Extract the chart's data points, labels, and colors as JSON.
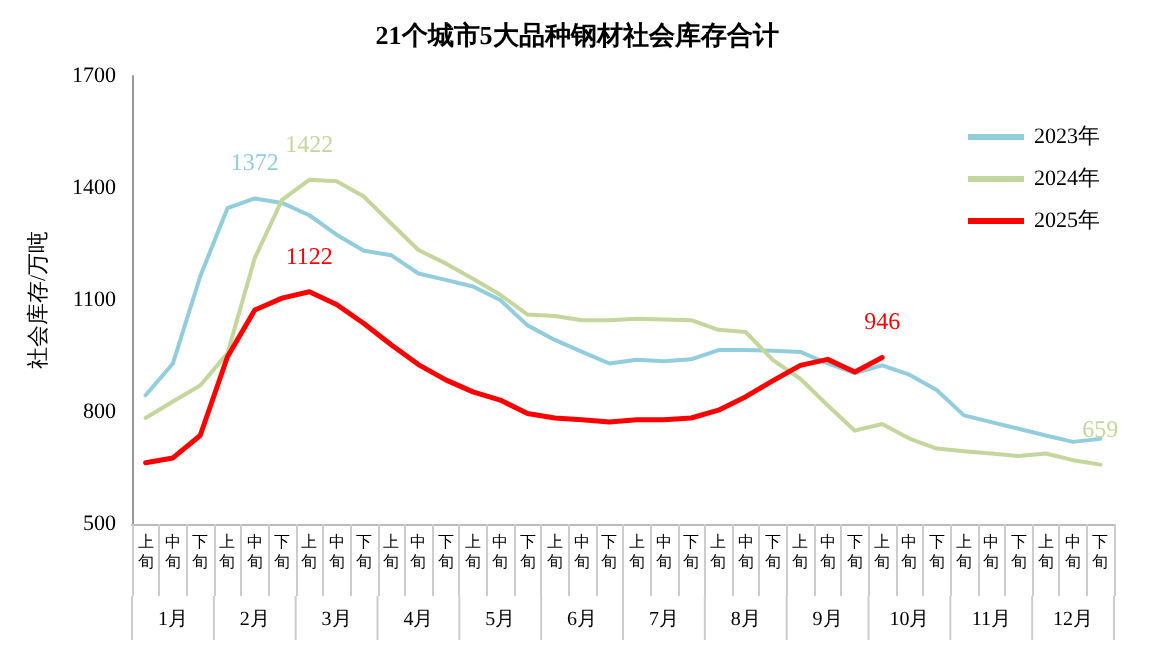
{
  "chart_data": {
    "type": "line",
    "title": "21个城市5大品种钢材社会库存合计",
    "ylabel": "社会库存/万吨",
    "categories": [
      "上旬",
      "中旬",
      "下旬",
      "上旬",
      "中旬",
      "下旬",
      "上旬",
      "中旬",
      "下旬",
      "上旬",
      "中旬",
      "下旬",
      "上旬",
      "中旬",
      "下旬",
      "上旬",
      "中旬",
      "下旬",
      "上旬",
      "中旬",
      "下旬",
      "上旬",
      "中旬",
      "下旬",
      "上旬",
      "中旬",
      "下旬",
      "上旬",
      "中旬",
      "下旬",
      "上旬",
      "中旬",
      "下旬",
      "上旬",
      "中旬",
      "下旬"
    ],
    "annotations": [
      "1月",
      "2月",
      "3月",
      "4月",
      "5月",
      "6月",
      "7月",
      "8月",
      "9月",
      "10月",
      "11月",
      "12月"
    ],
    "series": [
      {
        "name": "2023年",
        "color": "#92cddc",
        "values": [
          845,
          930,
          1163,
          1346,
          1372,
          1360,
          1327,
          1275,
          1232,
          1220,
          1171,
          1154,
          1136,
          1100,
          1032,
          993,
          961,
          930,
          940,
          936,
          941,
          966,
          966,
          964,
          961,
          930,
          904,
          925,
          900,
          859,
          791,
          773,
          755,
          737,
          720,
          728
        ],
        "value_labels": [
          null,
          null,
          null,
          null,
          "1372",
          null,
          null,
          null,
          null,
          null,
          null,
          null,
          null,
          null,
          null,
          null,
          null,
          null,
          null,
          null,
          null,
          null,
          null,
          null,
          null,
          null,
          null,
          null,
          null,
          null,
          null,
          null,
          null,
          null,
          null,
          null
        ]
      },
      {
        "name": "2024年",
        "color": "#c3d69b",
        "values": [
          784,
          828,
          871,
          957,
          1212,
          1368,
          1422,
          1418,
          1377,
          1305,
          1234,
          1198,
          1157,
          1114,
          1061,
          1057,
          1046,
          1046,
          1050,
          1048,
          1046,
          1020,
          1014,
          939,
          889,
          818,
          750,
          768,
          729,
          702,
          695,
          689,
          682,
          689,
          671,
          659
        ],
        "value_labels": [
          null,
          null,
          null,
          null,
          null,
          null,
          "1422",
          null,
          null,
          null,
          null,
          null,
          null,
          null,
          null,
          null,
          null,
          null,
          null,
          null,
          null,
          null,
          null,
          null,
          null,
          null,
          null,
          null,
          null,
          null,
          null,
          null,
          null,
          null,
          null,
          "659"
        ]
      },
      {
        "name": "2025年",
        "color": "#ff0000",
        "values": [
          664,
          677,
          737,
          948,
          1073,
          1105,
          1122,
          1088,
          1037,
          980,
          927,
          886,
          854,
          832,
          796,
          784,
          779,
          773,
          779,
          779,
          784,
          805,
          841,
          884,
          925,
          941,
          907,
          946,
          null,
          null,
          null,
          null,
          null,
          null,
          null,
          null
        ],
        "value_labels": [
          null,
          null,
          null,
          null,
          null,
          null,
          "1122",
          null,
          null,
          null,
          null,
          null,
          null,
          null,
          null,
          null,
          null,
          null,
          null,
          null,
          null,
          null,
          null,
          null,
          null,
          null,
          null,
          "946",
          null,
          null,
          null,
          null,
          null,
          null,
          null,
          null
        ]
      }
    ],
    "ylim": [
      500,
      1700
    ],
    "yticks": [
      500,
      800,
      1100,
      1400,
      1700
    ],
    "grid": false,
    "legend": "top right",
    "marker": "none",
    "line_style": "solid"
  }
}
